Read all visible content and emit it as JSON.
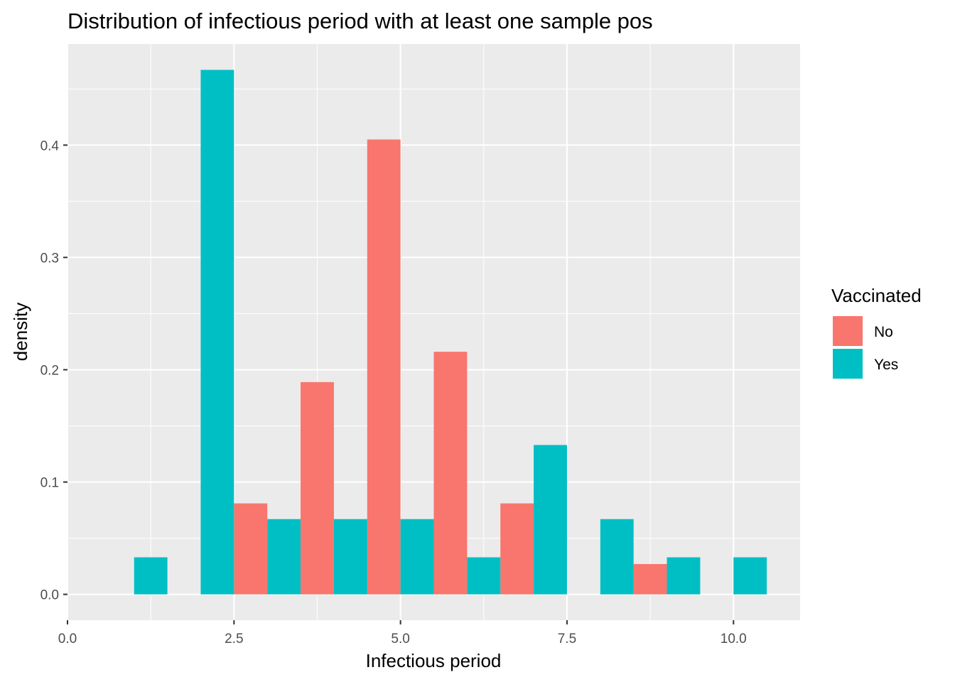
{
  "chart_data": {
    "type": "bar",
    "title": "Distribution of infectious period with at least one sample pos",
    "xlabel": "Infectious period",
    "ylabel": "density",
    "xlim": [
      0,
      11
    ],
    "ylim": [
      -0.023,
      0.49
    ],
    "x_ticks": [
      0.0,
      2.5,
      5.0,
      7.5,
      10.0
    ],
    "x_tick_labels": [
      "0.0",
      "2.5",
      "5.0",
      "7.5",
      "10.0"
    ],
    "y_ticks": [
      0.0,
      0.1,
      0.2,
      0.3,
      0.4
    ],
    "y_tick_labels": [
      "0.0",
      "0.1",
      "0.2",
      "0.3",
      "0.4"
    ],
    "grid": true,
    "bar_position": "dodge",
    "legend": {
      "title": "Vaccinated",
      "placement": "right"
    },
    "series": [
      {
        "name": "No",
        "color": "#F8766D",
        "bars": [
          {
            "x0": 2.5,
            "x1": 3.0,
            "value": 0.081
          },
          {
            "x0": 3.5,
            "x1": 4.0,
            "value": 0.189
          },
          {
            "x0": 4.5,
            "x1": 5.0,
            "value": 0.405
          },
          {
            "x0": 5.5,
            "x1": 6.0,
            "value": 0.216
          },
          {
            "x0": 6.5,
            "x1": 7.0,
            "value": 0.081
          },
          {
            "x0": 8.5,
            "x1": 9.0,
            "value": 0.027
          }
        ]
      },
      {
        "name": "Yes",
        "color": "#00BFC4",
        "bars": [
          {
            "x0": 1.0,
            "x1": 1.5,
            "value": 0.033
          },
          {
            "x0": 2.0,
            "x1": 2.5,
            "value": 0.467
          },
          {
            "x0": 3.0,
            "x1": 3.5,
            "value": 0.067
          },
          {
            "x0": 4.0,
            "x1": 4.5,
            "value": 0.067
          },
          {
            "x0": 5.0,
            "x1": 5.5,
            "value": 0.067
          },
          {
            "x0": 6.0,
            "x1": 6.5,
            "value": 0.033
          },
          {
            "x0": 7.0,
            "x1": 7.5,
            "value": 0.133
          },
          {
            "x0": 8.0,
            "x1": 8.5,
            "value": 0.067
          },
          {
            "x0": 9.0,
            "x1": 9.5,
            "value": 0.033
          },
          {
            "x0": 10.0,
            "x1": 10.5,
            "value": 0.033
          }
        ]
      }
    ]
  }
}
